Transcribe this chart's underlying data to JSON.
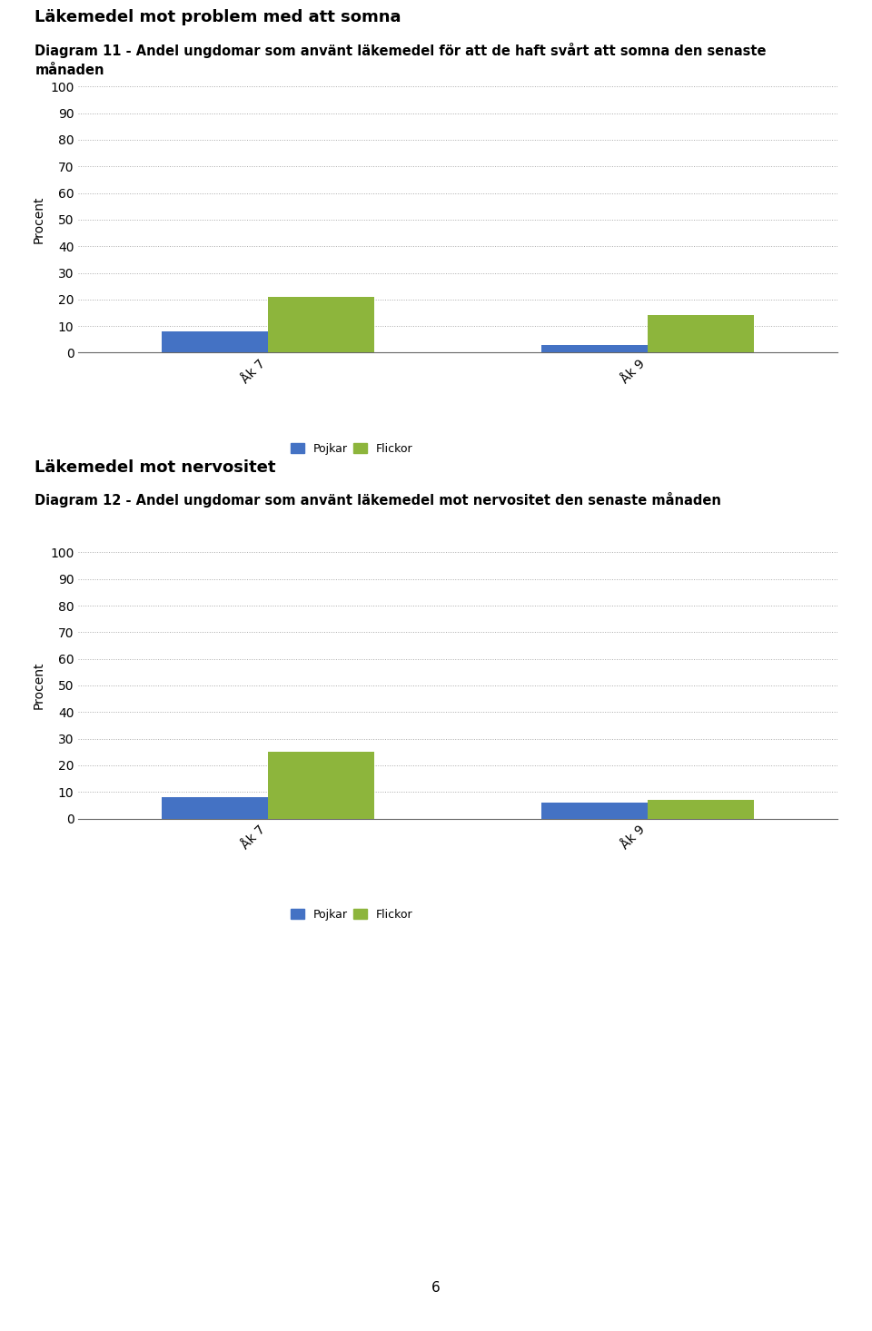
{
  "chart1": {
    "title": "Läkemedel mot problem med att somna",
    "subtitle_line1": "Diagram 11 - Andel ungdomar som använt läkemedel för att de haft svårt att somna den senaste",
    "subtitle_line2": "månaden",
    "categories": [
      "Åk 7",
      "Åk 9"
    ],
    "pojkar": [
      8,
      3
    ],
    "flickor": [
      21,
      14
    ],
    "ylabel": "Procent",
    "ylim": [
      0,
      100
    ],
    "yticks": [
      0,
      10,
      20,
      30,
      40,
      50,
      60,
      70,
      80,
      90,
      100
    ]
  },
  "chart2": {
    "title": "Läkemedel mot nervositet",
    "subtitle_line1": "Diagram 12 - Andel ungdomar som använt läkemedel mot nervositet den senaste månaden",
    "subtitle_line2": "",
    "categories": [
      "Åk 7",
      "Åk 9"
    ],
    "pojkar": [
      8,
      6
    ],
    "flickor": [
      25,
      7
    ],
    "ylabel": "Procent",
    "ylim": [
      0,
      100
    ],
    "yticks": [
      0,
      10,
      20,
      30,
      40,
      50,
      60,
      70,
      80,
      90,
      100
    ]
  },
  "pojkar_color": "#4472C4",
  "flickor_color": "#8DB53C",
  "legend_labels": [
    "Pojkar",
    "Flickor"
  ],
  "bar_width": 0.28,
  "page_number": "6",
  "background_color": "#ffffff",
  "grid_color": "#aaaaaa",
  "title_fontsize": 13,
  "subtitle_fontsize": 10.5,
  "axis_fontsize": 10,
  "tick_fontsize": 10,
  "legend_fontsize": 9
}
